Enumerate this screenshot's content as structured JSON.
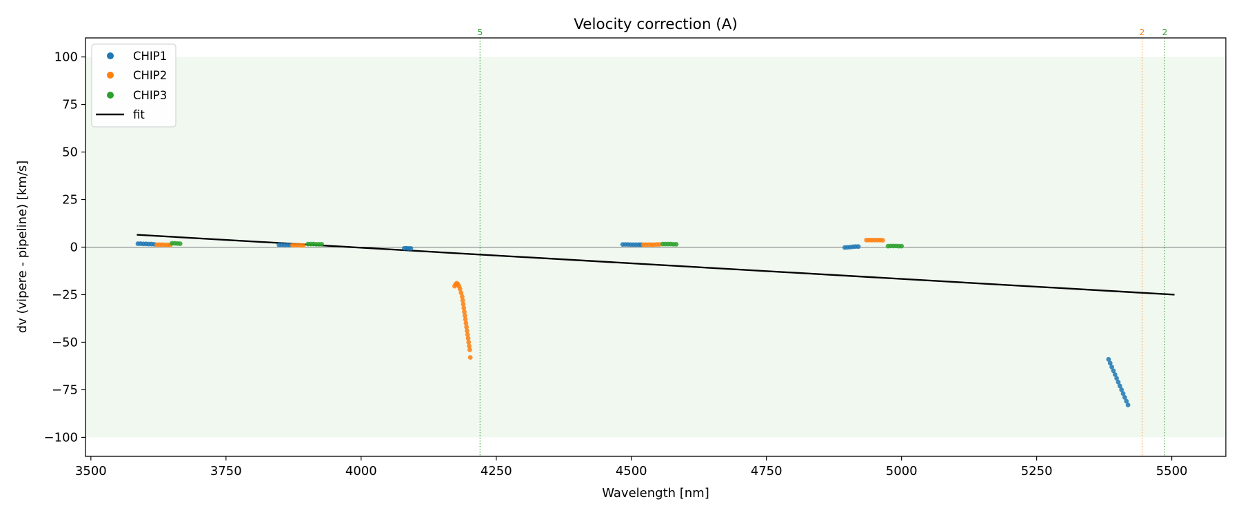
{
  "chart_data": {
    "type": "scatter",
    "title": "Velocity correction (A)",
    "xlabel": "Wavelength [nm]",
    "ylabel": "dv (vipere - pipeline) [km/s]",
    "xlim": [
      3490,
      5600
    ],
    "ylim": [
      -110,
      110
    ],
    "xticks": [
      3500,
      3750,
      4000,
      4250,
      4500,
      4750,
      5000,
      5250,
      5500
    ],
    "yticks": [
      -100,
      -75,
      -50,
      -25,
      0,
      25,
      50,
      75,
      100
    ],
    "xtick_labels": [
      "3500",
      "3750",
      "4000",
      "4250",
      "4500",
      "4750",
      "5000",
      "5250",
      "5500"
    ],
    "ytick_labels": [
      "−100",
      "−75",
      "−50",
      "−25",
      "0",
      "25",
      "50",
      "75",
      "100"
    ],
    "grid": false,
    "legend_position": "top-left",
    "shaded_band": {
      "y": [
        -100,
        100
      ],
      "color": "#2ca02c"
    },
    "zero_line": 0,
    "series": [
      {
        "name": "CHIP1",
        "color": "#1f77b4",
        "points": [
          [
            3587,
            1.8
          ],
          [
            3592,
            1.8
          ],
          [
            3597,
            1.7
          ],
          [
            3602,
            1.7
          ],
          [
            3607,
            1.6
          ],
          [
            3612,
            1.6
          ],
          [
            3617,
            1.5
          ],
          [
            3848,
            1.2
          ],
          [
            3853,
            1.2
          ],
          [
            3858,
            1.1
          ],
          [
            3863,
            1.1
          ],
          [
            3868,
            1.0
          ],
          [
            4080,
            -0.6
          ],
          [
            4084,
            -0.6
          ],
          [
            4088,
            -0.7
          ],
          [
            4092,
            -0.7
          ],
          [
            4484,
            1.4
          ],
          [
            4489,
            1.4
          ],
          [
            4494,
            1.4
          ],
          [
            4499,
            1.3
          ],
          [
            4504,
            1.3
          ],
          [
            4509,
            1.3
          ],
          [
            4514,
            1.3
          ],
          [
            4518,
            1.3
          ],
          [
            4895,
            -0.2
          ],
          [
            4900,
            -0.1
          ],
          [
            4905,
            0.0
          ],
          [
            4910,
            0.2
          ],
          [
            4915,
            0.3
          ],
          [
            4920,
            0.3
          ],
          [
            5383,
            -59
          ],
          [
            5386,
            -61
          ],
          [
            5389,
            -63
          ],
          [
            5392,
            -65
          ],
          [
            5395,
            -67
          ],
          [
            5398,
            -69
          ],
          [
            5401,
            -71
          ],
          [
            5404,
            -73
          ],
          [
            5407,
            -75
          ],
          [
            5410,
            -77
          ],
          [
            5413,
            -79
          ],
          [
            5416,
            -81
          ],
          [
            5419,
            -83
          ]
        ]
      },
      {
        "name": "CHIP2",
        "color": "#ff7f0e",
        "points": [
          [
            3622,
            1.3
          ],
          [
            3627,
            1.3
          ],
          [
            3632,
            1.3
          ],
          [
            3637,
            1.2
          ],
          [
            3642,
            1.2
          ],
          [
            3647,
            1.2
          ],
          [
            3873,
            1.0
          ],
          [
            3878,
            1.0
          ],
          [
            3883,
            1.0
          ],
          [
            3888,
            0.9
          ],
          [
            3893,
            0.9
          ],
          [
            4173,
            -20.5
          ],
          [
            4175,
            -19.5
          ],
          [
            4177,
            -19.0
          ],
          [
            4179,
            -19.5
          ],
          [
            4181,
            -20.5
          ],
          [
            4183,
            -22
          ],
          [
            4185,
            -24
          ],
          [
            4187,
            -26
          ],
          [
            4188,
            -28
          ],
          [
            4189,
            -30
          ],
          [
            4190,
            -32
          ],
          [
            4191,
            -34
          ],
          [
            4192,
            -36
          ],
          [
            4193,
            -38
          ],
          [
            4194,
            -40
          ],
          [
            4195,
            -42
          ],
          [
            4196,
            -44
          ],
          [
            4197,
            -46
          ],
          [
            4198,
            -48
          ],
          [
            4199,
            -50
          ],
          [
            4200,
            -52
          ],
          [
            4201,
            -54
          ],
          [
            4202,
            -58
          ],
          [
            4522,
            1.3
          ],
          [
            4527,
            1.3
          ],
          [
            4532,
            1.3
          ],
          [
            4537,
            1.3
          ],
          [
            4542,
            1.3
          ],
          [
            4547,
            1.4
          ],
          [
            4552,
            1.4
          ],
          [
            4935,
            3.7
          ],
          [
            4940,
            3.7
          ],
          [
            4945,
            3.7
          ],
          [
            4950,
            3.7
          ],
          [
            4955,
            3.7
          ],
          [
            4960,
            3.7
          ],
          [
            4965,
            3.6
          ]
        ]
      },
      {
        "name": "CHIP3",
        "color": "#2ca02c",
        "points": [
          [
            3650,
            2.0
          ],
          [
            3655,
            2.0
          ],
          [
            3660,
            1.9
          ],
          [
            3665,
            1.8
          ],
          [
            3902,
            1.6
          ],
          [
            3907,
            1.6
          ],
          [
            3912,
            1.6
          ],
          [
            3917,
            1.5
          ],
          [
            3922,
            1.5
          ],
          [
            3927,
            1.5
          ],
          [
            4558,
            1.6
          ],
          [
            4563,
            1.6
          ],
          [
            4568,
            1.6
          ],
          [
            4573,
            1.6
          ],
          [
            4578,
            1.5
          ],
          [
            4583,
            1.5
          ],
          [
            4975,
            0.5
          ],
          [
            4980,
            0.6
          ],
          [
            4985,
            0.6
          ],
          [
            4990,
            0.6
          ],
          [
            4995,
            0.5
          ],
          [
            5000,
            0.5
          ]
        ]
      }
    ],
    "fit": {
      "name": "fit",
      "color": "#000000",
      "x": [
        3585,
        5505
      ],
      "y": [
        6.5,
        -25
      ]
    },
    "vlines": [
      {
        "x": 4220,
        "label": "5",
        "color": "#2ca02c"
      },
      {
        "x": 5445,
        "label": "2",
        "color": "#ff7f0e"
      },
      {
        "x": 5487,
        "label": "2",
        "color": "#2ca02c"
      }
    ]
  }
}
